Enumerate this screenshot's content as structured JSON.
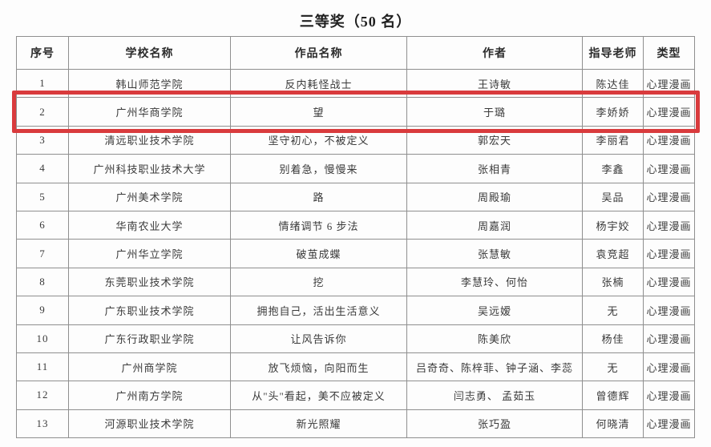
{
  "title": "三等奖（50 名）",
  "highlight": {
    "row_seq": "2",
    "color": "#d93b3d"
  },
  "table": {
    "headers": [
      "序号",
      "学校名称",
      "作品名称",
      "作者",
      "指导老师",
      "类型"
    ],
    "rows": [
      {
        "seq": "1",
        "school": "韩山师范学院",
        "work": "反内耗怪战士",
        "authors": "王诗敏",
        "advisor": "陈达佳",
        "type": "心理漫画",
        "highlighted": false
      },
      {
        "seq": "2",
        "school": "广州华商学院",
        "work": "望",
        "authors": "于璐",
        "advisor": "李娇娇",
        "type": "心理漫画",
        "highlighted": true
      },
      {
        "seq": "3",
        "school": "清远职业技术学院",
        "work": "坚守初心，不被定义",
        "authors": "郭宏天",
        "advisor": "李丽君",
        "type": "心理漫画",
        "highlighted": false
      },
      {
        "seq": "4",
        "school": "广州科技职业技术大学",
        "work": "别着急，慢慢来",
        "authors": "张相青",
        "advisor": "李鑫",
        "type": "心理漫画",
        "highlighted": false
      },
      {
        "seq": "5",
        "school": "广州美术学院",
        "work": "路",
        "authors": "周殿瑜",
        "advisor": "吴品",
        "type": "心理漫画",
        "highlighted": false
      },
      {
        "seq": "6",
        "school": "华南农业大学",
        "work": "情绪调节 6 步法",
        "authors": "周嘉润",
        "advisor": "杨宇姣",
        "type": "心理漫画",
        "highlighted": false
      },
      {
        "seq": "7",
        "school": "广州华立学院",
        "work": "破茧成蝶",
        "authors": "张慧敏",
        "advisor": "袁竞超",
        "type": "心理漫画",
        "highlighted": false
      },
      {
        "seq": "8",
        "school": "东莞职业技术学院",
        "work": "挖",
        "authors": "李慧玲、何怡",
        "advisor": "张楠",
        "type": "心理漫画",
        "highlighted": false
      },
      {
        "seq": "9",
        "school": "广东职业技术学院",
        "work": "拥抱自己，活出生活意义",
        "authors": "吴远嫒",
        "advisor": "无",
        "type": "心理漫画",
        "highlighted": false
      },
      {
        "seq": "10",
        "school": "广东行政职业学院",
        "work": "让风告诉你",
        "authors": "陈美欣",
        "advisor": "杨佳",
        "type": "心理漫画",
        "highlighted": false
      },
      {
        "seq": "11",
        "school": "广州商学院",
        "work": "放飞烦恼，向阳而生",
        "authors": "吕奇奇、陈梓菲、钟子涵、李蕊",
        "advisor": "无",
        "type": "心理漫画",
        "highlighted": false
      },
      {
        "seq": "12",
        "school": "广州南方学院",
        "work": "从\"头\"看起，美不应被定义",
        "authors": "闫志勇、 孟茹玉",
        "advisor": "曾德辉",
        "type": "心理漫画",
        "highlighted": false
      },
      {
        "seq": "13",
        "school": "河源职业技术学院",
        "work": "新光照耀",
        "authors": "张巧盈",
        "advisor": "何晓清",
        "type": "心理漫画",
        "highlighted": false
      }
    ]
  }
}
